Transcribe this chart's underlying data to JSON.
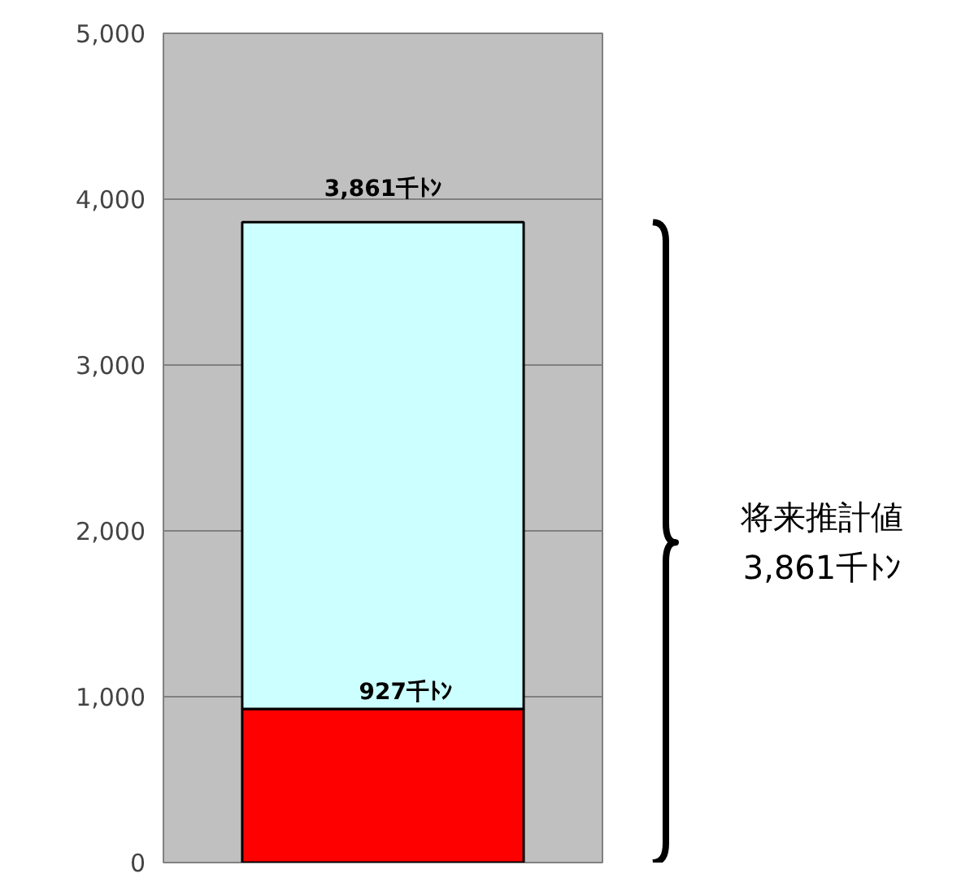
{
  "chart_data": {
    "type": "bar",
    "stacked": true,
    "categories": [
      null
    ],
    "series": [
      {
        "color": "#ff0000",
        "values": [
          927
        ],
        "value_labels": [
          "927千ﾄﾝ"
        ]
      },
      {
        "color": "#ccffff",
        "values": [
          2934
        ]
      }
    ],
    "totals": [
      "3,861千ﾄﾝ"
    ],
    "ylim": [
      0,
      5000
    ],
    "yticks": [
      {
        "value": 0,
        "label": "0"
      },
      {
        "value": 1000,
        "label": "1,000"
      },
      {
        "value": 2000,
        "label": "2,000"
      },
      {
        "value": 3000,
        "label": "3,000"
      },
      {
        "value": 4000,
        "label": "4,000"
      },
      {
        "value": 5000,
        "label": "5,000"
      }
    ],
    "grid": "y",
    "annotations": [
      "将来推計値\n3,861千ﾄﾝ"
    ]
  }
}
